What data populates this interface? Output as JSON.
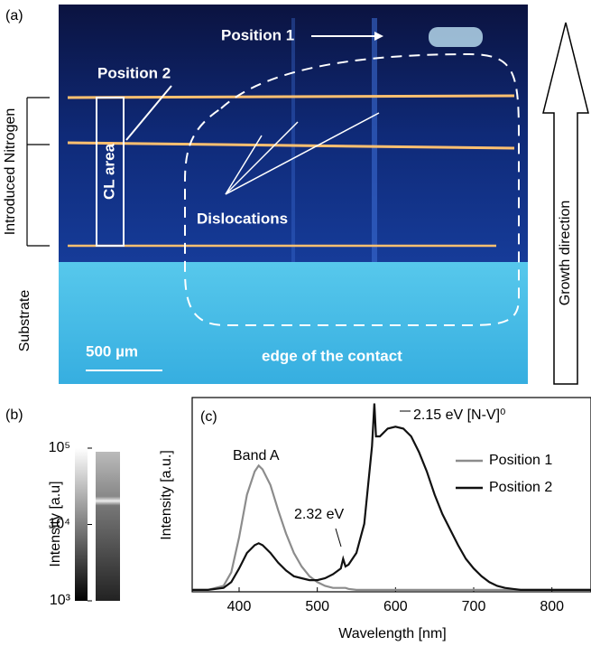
{
  "panel_a": {
    "label": "(a)",
    "position_1": "Position 1",
    "position_2": "Position 2",
    "cl_area": "CL area",
    "dislocations": "Dislocations",
    "introduced_nitrogen": "Introduced Nitrogen",
    "substrate": "Substrate",
    "scale_bar": "500 µm",
    "contact_edge": "edge of the contact",
    "growth_direction": "Growth direction"
  },
  "panel_b": {
    "label": "(b)",
    "axis_label": "Intensity [a.u]",
    "log_scale": true,
    "ylim": [
      1000,
      100000
    ],
    "yticks": [
      {
        "value": 1000,
        "label": "10³"
      },
      {
        "value": 10000,
        "label": "10⁴"
      },
      {
        "value": 100000,
        "label": "10⁵"
      }
    ]
  },
  "chart_data": {
    "type": "line",
    "label": "(c)",
    "x_label": "Wavelength [nm]",
    "y_label": "Intensity [a.u.]",
    "xlim": [
      340,
      850
    ],
    "xticks": [
      400,
      500,
      600,
      700,
      800
    ],
    "ylim": [
      0,
      100
    ],
    "legend": "upper right",
    "annotations": [
      "Band A",
      "2.32 eV",
      "2.15 eV [N-V]⁰"
    ],
    "x": [
      340,
      360,
      380,
      390,
      400,
      410,
      420,
      425,
      430,
      440,
      450,
      460,
      470,
      480,
      490,
      500,
      510,
      520,
      530,
      533,
      536,
      540,
      550,
      560,
      565,
      570,
      573,
      575,
      580,
      590,
      600,
      610,
      620,
      630,
      640,
      650,
      660,
      670,
      680,
      690,
      700,
      710,
      720,
      730,
      740,
      750,
      760,
      780,
      800,
      820,
      850
    ],
    "series": [
      {
        "name": "Position 1",
        "color": "#8c8c8c",
        "values": [
          1,
          1,
          3,
          10,
          28,
          50,
          62,
          65,
          63,
          55,
          42,
          30,
          20,
          13,
          8,
          5,
          3,
          2,
          2,
          2,
          2,
          1.5,
          1,
          1,
          1,
          1,
          1,
          1,
          1,
          1,
          1,
          1,
          1,
          1,
          1,
          1,
          1,
          1,
          1,
          1,
          1,
          1,
          1,
          1,
          1,
          1,
          1,
          1,
          1,
          1,
          1
        ]
      },
      {
        "name": "Position 2",
        "color": "#111111",
        "values": [
          1,
          1,
          2,
          5,
          12,
          20,
          24,
          25,
          24,
          20,
          15,
          11,
          8,
          7,
          6,
          6,
          7,
          9,
          12,
          17,
          13,
          14,
          20,
          35,
          55,
          75,
          97,
          80,
          80,
          84,
          85,
          84,
          80,
          72,
          62,
          50,
          40,
          32,
          24,
          17,
          12,
          8,
          5,
          3,
          2,
          1.5,
          1,
          1,
          1,
          1,
          1
        ]
      }
    ]
  }
}
